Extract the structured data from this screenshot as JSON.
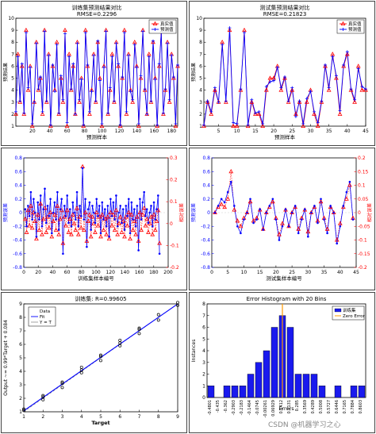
{
  "watermark": "CSDN @机器学习之心",
  "chart_data": [
    {
      "type": "line",
      "title": "训练集预测结果对比",
      "subtitle": "RMSE=0.2296",
      "xlabel": "预测样本",
      "ylabel": "预测结果",
      "xlim": [
        1,
        187
      ],
      "ylim": [
        1,
        10
      ],
      "xticks": [
        20,
        40,
        60,
        80,
        100,
        120,
        140,
        160,
        180
      ],
      "yticks": [
        1,
        2,
        3,
        4,
        5,
        6,
        7,
        8,
        9,
        10
      ],
      "legend_position": "top-right",
      "series": [
        {
          "name": "真实值",
          "color": "#ff0000",
          "values": [
            2,
            7,
            3,
            6,
            2,
            9,
            4,
            6,
            1,
            3,
            8,
            4,
            5,
            2,
            9,
            3,
            7,
            1,
            6,
            4,
            8,
            2,
            5,
            3,
            9,
            1,
            7,
            4,
            6,
            2,
            8,
            3,
            5,
            1,
            9,
            6,
            2,
            4,
            7,
            3,
            8,
            5,
            1,
            6,
            9,
            2,
            4,
            7,
            3,
            8,
            6,
            1,
            5,
            9,
            2,
            7,
            4,
            3,
            8,
            6,
            1,
            5,
            9,
            4,
            2,
            7,
            3,
            8,
            5,
            1,
            6,
            9,
            2,
            4,
            8,
            3,
            7,
            5,
            1,
            6
          ]
        },
        {
          "name": "预测值",
          "color": "#0000ff",
          "values": [
            2.2,
            6.8,
            3.1,
            6.2,
            2.1,
            8.8,
            4.2,
            5.9,
            1.2,
            3.0,
            7.9,
            4.1,
            5.1,
            2.2,
            8.9,
            3.1,
            6.9,
            1.1,
            6.1,
            3.9,
            7.8,
            2.1,
            5.2,
            3.2,
            8.7,
            1.3,
            6.8,
            4.1,
            6.2,
            2.0,
            7.9,
            3.2,
            4.9,
            1.1,
            8.8,
            6.1,
            2.2,
            3.9,
            6.9,
            3.1,
            8.1,
            4.8,
            1.2,
            5.9,
            8.9,
            2.1,
            4.2,
            6.8,
            3.1,
            7.9,
            6.2,
            1.1,
            5.1,
            8.8,
            2.2,
            6.9,
            3.9,
            3.2,
            7.8,
            5.9,
            1.2,
            5.2,
            8.9,
            4.1,
            2.0,
            6.8,
            3.1,
            8.1,
            4.9,
            1.1,
            6.2,
            8.8,
            2.1,
            4.1,
            7.9,
            3.2,
            6.9,
            5.1,
            1.2,
            6.1
          ]
        }
      ]
    },
    {
      "type": "line",
      "title": "测试集预测结果对比",
      "subtitle": "RMSE=0.21823",
      "xlabel": "预测样本",
      "ylabel": "预测结果",
      "xlim": [
        1,
        45
      ],
      "ylim": [
        1,
        10
      ],
      "xticks": [
        5,
        10,
        15,
        20,
        25,
        30,
        35,
        40,
        45
      ],
      "yticks": [
        1,
        2,
        3,
        4,
        5,
        6,
        7,
        8,
        9,
        10
      ],
      "legend_position": "top-right",
      "series": [
        {
          "name": "真实值",
          "color": "#ff0000",
          "x": [
            1,
            2,
            3,
            4,
            5,
            6,
            7,
            8,
            9,
            10,
            11,
            12,
            13,
            14,
            15,
            16,
            17,
            18,
            19,
            20,
            21,
            22,
            23,
            24,
            25,
            26,
            27,
            28,
            29,
            30,
            31,
            32,
            33,
            34,
            35,
            36,
            37,
            38,
            39,
            40,
            41,
            42,
            43,
            44,
            45
          ],
          "values": [
            1,
            3,
            2,
            4,
            3,
            8,
            3,
            9,
            1,
            1,
            4,
            9,
            1,
            3,
            2,
            2,
            1,
            4,
            5,
            5,
            6,
            4,
            5,
            3,
            4,
            2,
            3,
            1,
            3,
            4,
            2,
            1,
            3,
            6,
            4,
            7,
            5,
            2,
            6,
            7,
            4,
            3,
            6,
            4,
            4
          ]
        },
        {
          "name": "预测值",
          "color": "#0000ff",
          "x": [
            1,
            2,
            3,
            4,
            5,
            6,
            7,
            8,
            9,
            10,
            11,
            12,
            13,
            14,
            15,
            16,
            17,
            18,
            19,
            20,
            21,
            22,
            23,
            24,
            25,
            26,
            27,
            28,
            29,
            30,
            31,
            32,
            33,
            34,
            35,
            36,
            37,
            38,
            39,
            40,
            41,
            42,
            43,
            44,
            45
          ],
          "values": [
            1.1,
            3.1,
            2.2,
            4.2,
            3.0,
            7.8,
            3.1,
            9.2,
            1.3,
            1.2,
            4.1,
            8.8,
            1.1,
            3.2,
            2.1,
            2.2,
            1.2,
            4.3,
            4.7,
            4.8,
            5.9,
            4.2,
            5.1,
            3.1,
            4.2,
            1.8,
            3.1,
            1.2,
            3.3,
            3.9,
            2.2,
            1.3,
            3.1,
            6.1,
            4.2,
            6.8,
            5.2,
            2.3,
            6.1,
            7.2,
            4.1,
            3.2,
            5.8,
            4.3,
            4.1
          ]
        }
      ]
    },
    {
      "type": "line",
      "title": "",
      "xlabel": "训练集样本编号",
      "ylabel": "预测误差",
      "y2label": "相对误差",
      "xlim": [
        0,
        200
      ],
      "ylim": [
        -0.8,
        0.8
      ],
      "y2lim": [
        -0.2,
        0.3
      ],
      "xticks": [
        0,
        20,
        40,
        60,
        80,
        100,
        120,
        140,
        160,
        180,
        200
      ],
      "yticks": [
        -0.8,
        -0.6,
        -0.4,
        -0.2,
        0,
        0.2,
        0.4,
        0.6,
        0.8
      ],
      "y2ticks": [
        -0.2,
        -0.1,
        0,
        0.1,
        0.2,
        0.3
      ],
      "series": [
        {
          "name": "",
          "axis": "left",
          "color": "#0000ff",
          "values": [
            0.05,
            -0.2,
            0.1,
            -0.05,
            0.3,
            -0.1,
            0.2,
            0.0,
            -0.35,
            0.15,
            -0.1,
            0.25,
            -0.2,
            0.05,
            0.35,
            -0.15,
            0.1,
            -0.05,
            0.2,
            -0.3,
            0.0,
            0.15,
            -0.1,
            0.3,
            -0.25,
            0.05,
            0.2,
            -0.6,
            0.1,
            -0.05,
            0.25,
            -0.15,
            0.05,
            -0.2,
            0.15,
            0.0,
            -0.1,
            0.3,
            -0.2,
            0.1,
            -0.05,
            0.65,
            -0.1,
            0.2,
            -0.5,
            0.05,
            0.15,
            -0.25,
            0.1,
            0.0,
            -0.15,
            0.2,
            -0.05,
            0.1,
            -0.3,
            0.15,
            -0.1,
            0.05,
            -0.2,
            0.1,
            -0.35,
            0.2,
            -0.05,
            0.15,
            -0.1,
            0.25,
            -0.2,
            0.0,
            0.1,
            -0.15,
            0.05,
            -0.25,
            0.1,
            -0.05,
            0.2,
            -0.3,
            0.15,
            -0.1,
            0.05,
            -0.2,
            0.1,
            -0.55,
            0.2,
            -0.1,
            0.15,
            0.3,
            -0.05,
            0.05,
            -0.15,
            0.0,
            0.1,
            -0.2,
            0.15,
            -0.1,
            0.05,
            0.25,
            -0.6
          ]
        },
        {
          "name": "",
          "axis": "right",
          "color": "#ff0000",
          "values": [
            0.02,
            -0.04,
            0.06,
            -0.01,
            0.08,
            -0.02,
            0.05,
            0.01,
            -0.07,
            0.04,
            -0.03,
            0.09,
            -0.05,
            0.02,
            0.07,
            -0.04,
            0.03,
            -0.02,
            0.05,
            -0.06,
            0.01,
            0.04,
            -0.03,
            0.08,
            -0.05,
            0.02,
            0.06,
            -0.09,
            0.03,
            -0.01,
            0.06,
            -0.04,
            0.02,
            -0.05,
            0.04,
            0.0,
            -0.03,
            0.07,
            -0.05,
            0.03,
            -0.02,
            0.26,
            -0.03,
            0.05,
            -0.08,
            0.01,
            0.04,
            -0.06,
            0.03,
            0.0,
            -0.04,
            0.05,
            -0.01,
            0.03,
            -0.06,
            0.04,
            -0.03,
            0.02,
            -0.05,
            0.03,
            -0.07,
            0.05,
            -0.01,
            0.04,
            -0.03,
            0.06,
            -0.05,
            0.0,
            0.03,
            -0.04,
            0.01,
            -0.06,
            0.03,
            -0.01,
            0.05,
            -0.07,
            0.04,
            -0.03,
            0.01,
            -0.05,
            0.03,
            -0.08,
            0.05,
            -0.03,
            0.04,
            0.07,
            -0.01,
            0.02,
            -0.04,
            0.0,
            0.03,
            -0.05,
            0.04,
            -0.03,
            0.01,
            0.06,
            -0.09
          ]
        }
      ]
    },
    {
      "type": "line",
      "title": "",
      "xlabel": "测试集样本编号",
      "ylabel": "预测误差",
      "y2label": "相对误差",
      "xlim": [
        0,
        45
      ],
      "ylim": [
        -0.8,
        0.8
      ],
      "y2lim": [
        -0.2,
        0.2
      ],
      "xticks": [
        0,
        5,
        10,
        15,
        20,
        25,
        30,
        35,
        40,
        45
      ],
      "yticks": [
        -0.8,
        -0.6,
        -0.4,
        -0.2,
        0,
        0.2,
        0.4,
        0.6,
        0.8
      ],
      "y2ticks": [
        -0.2,
        -0.15,
        -0.1,
        -0.05,
        0,
        0.05,
        0.1,
        0.15,
        0.2
      ],
      "series": [
        {
          "name": "",
          "axis": "left",
          "color": "#0000ff",
          "x": [
            1,
            2,
            3,
            4,
            5,
            6,
            7,
            8,
            9,
            10,
            11,
            12,
            13,
            14,
            15,
            16,
            17,
            18,
            19,
            20,
            21,
            22,
            23,
            24,
            25,
            26,
            27,
            28,
            29,
            30,
            31,
            32,
            33,
            34,
            35,
            36,
            37,
            38,
            39,
            40,
            41,
            42,
            43,
            44
          ],
          "values": [
            0.0,
            0.1,
            0.2,
            0.15,
            0.3,
            0.45,
            0.1,
            -0.2,
            -0.3,
            -0.1,
            0.0,
            0.2,
            -0.15,
            -0.1,
            0.05,
            -0.25,
            0.0,
            0.1,
            0.2,
            -0.1,
            -0.4,
            -0.2,
            0.05,
            -0.2,
            0.0,
            0.1,
            -0.3,
            -0.1,
            0.05,
            -0.35,
            0.0,
            0.1,
            -0.15,
            0.2,
            -0.1,
            -0.3,
            0.1,
            0.0,
            -0.45,
            -0.2,
            0.1,
            0.3,
            0.45,
            -0.1
          ]
        },
        {
          "name": "",
          "axis": "right",
          "color": "#ff0000",
          "x": [
            1,
            2,
            3,
            4,
            5,
            6,
            7,
            8,
            9,
            10,
            11,
            12,
            13,
            14,
            15,
            16,
            17,
            18,
            19,
            20,
            21,
            22,
            23,
            24,
            25,
            26,
            27,
            28,
            29,
            30,
            31,
            32,
            33,
            34,
            35,
            36,
            37,
            38,
            39,
            40,
            41,
            42,
            43,
            44
          ],
          "values": [
            0.0,
            0.02,
            0.03,
            0.02,
            0.05,
            0.15,
            0.01,
            -0.03,
            -0.05,
            -0.02,
            0.0,
            0.04,
            -0.03,
            -0.02,
            0.01,
            -0.06,
            0.0,
            0.02,
            0.04,
            -0.02,
            -0.08,
            -0.04,
            0.01,
            -0.05,
            0.0,
            0.02,
            -0.06,
            -0.02,
            0.01,
            -0.07,
            0.0,
            0.02,
            -0.03,
            0.04,
            -0.02,
            -0.06,
            0.02,
            0.0,
            -0.1,
            -0.04,
            0.02,
            0.05,
            0.1,
            -0.02
          ]
        }
      ]
    },
    {
      "type": "scatter",
      "title": "训练集: R=0.99605",
      "xlabel": "Target",
      "ylabel": "Output ~= 0.99*Target + 0.084",
      "xlim": [
        1,
        9
      ],
      "ylim": [
        1,
        9
      ],
      "xticks": [
        1,
        2,
        3,
        4,
        5,
        6,
        7,
        8,
        9
      ],
      "yticks": [
        1,
        2,
        3,
        4,
        5,
        6,
        7,
        8,
        9
      ],
      "legend": [
        "Data",
        "Fit",
        "Y = T"
      ],
      "legend_position": "top-left",
      "fit": {
        "slope": 0.99,
        "intercept": 0.084
      },
      "series": [
        {
          "name": "Data",
          "color": "#0000ff",
          "x": [
            1,
            1,
            2,
            2,
            2,
            3,
            3,
            3,
            4,
            4,
            4,
            5,
            5,
            5,
            6,
            6,
            6,
            7,
            7,
            7,
            8,
            8,
            9,
            9
          ],
          "values": [
            1.1,
            1.2,
            1.9,
            2.1,
            2.2,
            2.8,
            3.1,
            3.2,
            3.9,
            4.1,
            4.3,
            4.8,
            5.1,
            5.2,
            5.9,
            6.1,
            6.3,
            6.8,
            7.1,
            7.2,
            7.8,
            8.2,
            8.9,
            9.1
          ]
        }
      ]
    },
    {
      "type": "bar",
      "title": "Error Histogram with 20 Bins",
      "xlabel": "Errors",
      "ylabel": "Instances",
      "ylim": [
        0,
        8
      ],
      "yticks": [
        0,
        1,
        2,
        3,
        4,
        5,
        6,
        7,
        8
      ],
      "legend": [
        "训练集",
        "Zero Error"
      ],
      "legend_position": "top-right",
      "zero_error_bin": 9,
      "categories": [
        "-0.4801",
        "-0.435",
        "-0.362",
        "-0.2903",
        "-0.2183",
        "-0.1464",
        "-0.0745",
        "-0.00261",
        "0.06929",
        "0.1412",
        "0.2131",
        "0.285",
        "0.3569",
        "0.4289",
        "0.5008",
        "0.5727",
        "0.6446",
        "0.7165",
        "0.7884",
        "0.8603"
      ],
      "values": [
        1,
        0,
        1,
        1,
        1,
        2,
        3,
        4,
        6,
        7,
        6,
        2,
        2,
        2,
        1,
        0,
        1,
        0,
        1,
        1
      ]
    }
  ]
}
